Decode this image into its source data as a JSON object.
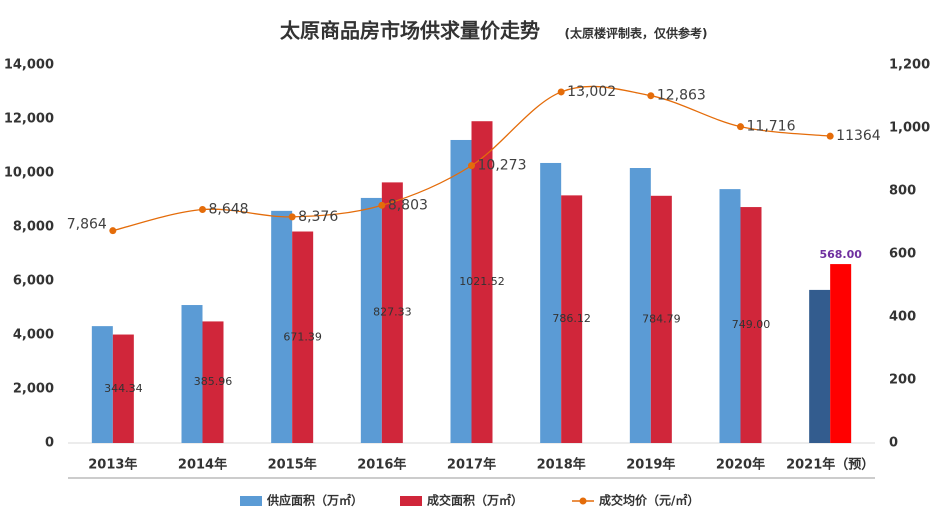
{
  "chart_data": {
    "type": "bar_line",
    "title": "太原商品房市场供求量价走势",
    "subtitle": "(太原楼评制表，仅供参考)",
    "categories": [
      "2013年",
      "2014年",
      "2015年",
      "2016年",
      "2017年",
      "2018年",
      "2019年",
      "2020年",
      "2021年（预）"
    ],
    "series": [
      {
        "name": "供应面积（万㎡）",
        "type": "bar",
        "axis": "y2",
        "color": "#5b9bd5",
        "colors": [
          "#5b9bd5",
          "#5b9bd5",
          "#5b9bd5",
          "#5b9bd5",
          "#5b9bd5",
          "#5b9bd5",
          "#5b9bd5",
          "#5b9bd5",
          "#335c8e"
        ],
        "values": [
          371,
          438,
          737,
          778,
          962,
          889,
          873,
          806,
          486
        ]
      },
      {
        "name": "成交面积（万㎡）",
        "type": "bar",
        "axis": "y2",
        "color": "#d0263a",
        "colors": [
          "#d0263a",
          "#d0263a",
          "#d0263a",
          "#d0263a",
          "#d0263a",
          "#d0263a",
          "#d0263a",
          "#d0263a",
          "#ff0000"
        ],
        "values": [
          344.34,
          385.96,
          671.39,
          827.33,
          1021.52,
          786.12,
          784.79,
          749.0,
          568.0
        ],
        "value_labels": [
          "344.34",
          "385.96",
          "671.39",
          "827.33",
          "1021.52",
          "786.12",
          "784.79",
          "749.00",
          "568.00"
        ]
      },
      {
        "name": "成交均价（元/㎡）",
        "type": "line",
        "color": "#e46c0a",
        "values": [
          7864,
          8648,
          8376,
          8803,
          10273,
          13002,
          12863,
          11716,
          11364
        ],
        "value_labels": [
          "7,864",
          "8,648",
          "8,376",
          "8,803",
          "10,273",
          "13,002",
          "12,863",
          "11,716",
          "11364"
        ]
      }
    ],
    "ylim": [
      0,
      14000
    ],
    "yticks": [
      0,
      {
        "value": 2000,
        "label": "2,000"
      },
      {
        "value": 4000,
        "label": "4,000"
      },
      {
        "value": 6000,
        "label": "6,000"
      },
      {
        "value": 8000,
        "label": "8,000"
      },
      {
        "value": 10000,
        "label": "10,000"
      },
      {
        "value": 12000,
        "label": "12,000"
      },
      {
        "value": 14000,
        "label": "14,000"
      }
    ],
    "y2lim": [
      0,
      1200
    ],
    "y2ticks": [
      0,
      200,
      400,
      600,
      800,
      {
        "value": 1000,
        "label": "1,000"
      },
      {
        "value": 1200,
        "label": "1,200"
      }
    ],
    "legend": "bottom"
  }
}
